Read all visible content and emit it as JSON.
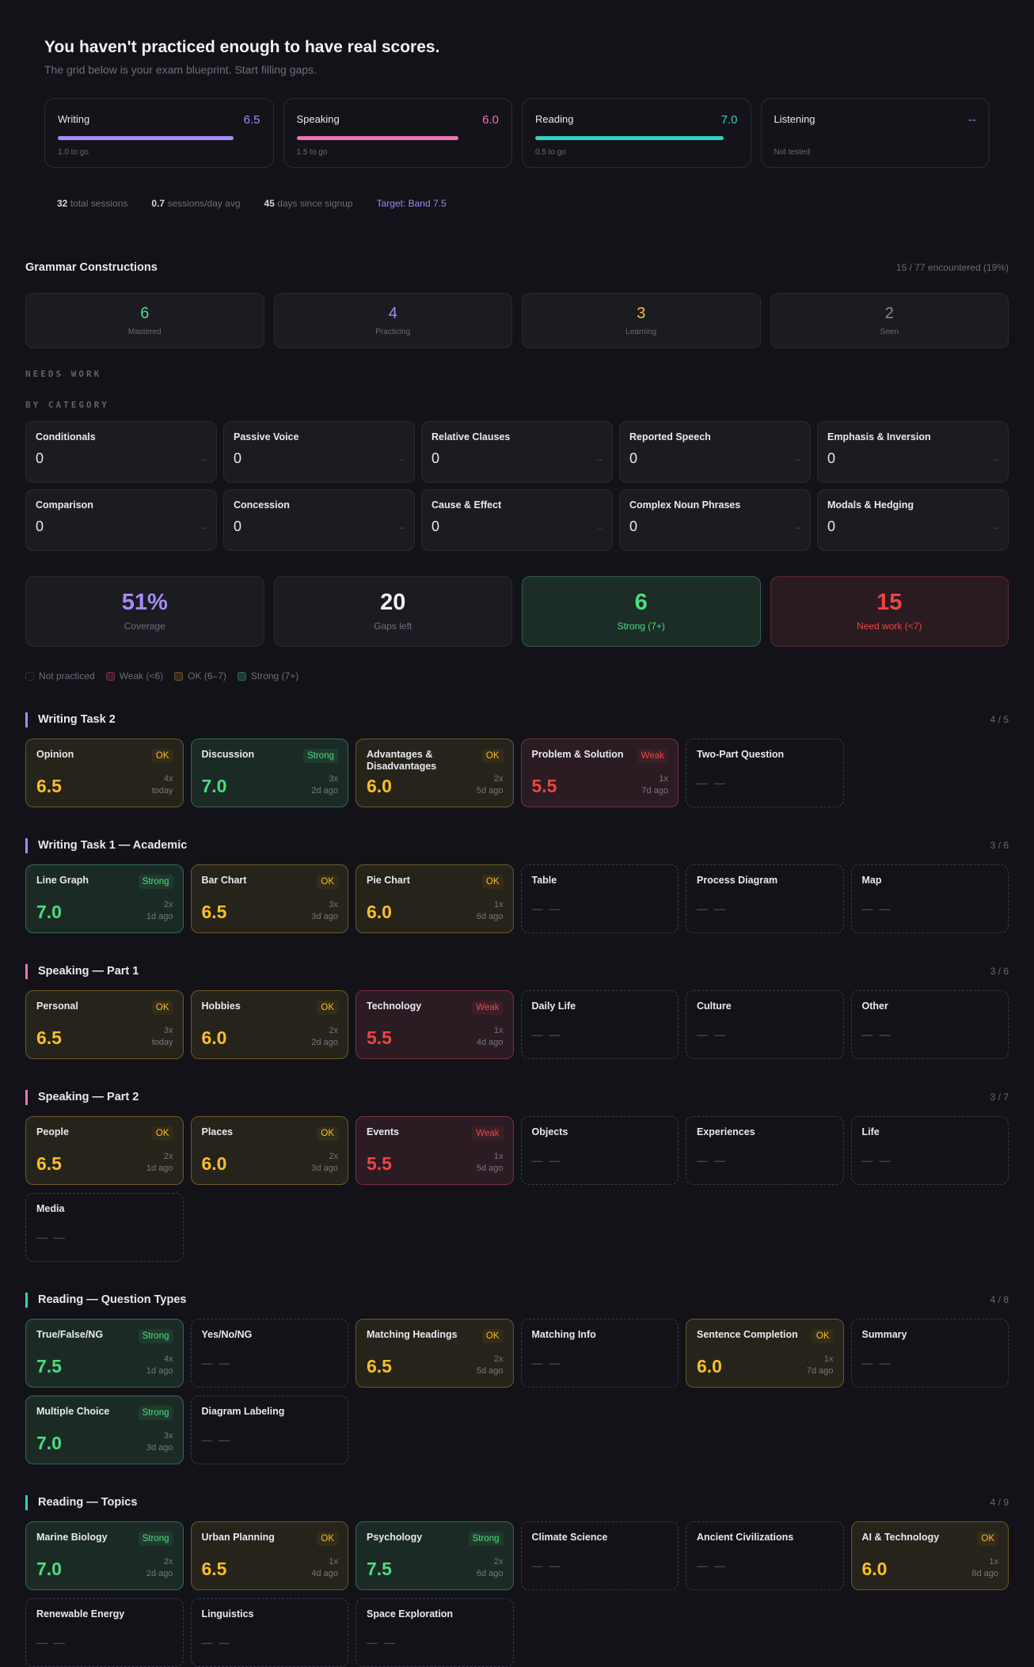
{
  "hero": {
    "title": "You haven't practiced enough to have real scores.",
    "subtitle": "The grid below is your exam blueprint. Start filling gaps."
  },
  "scores": [
    {
      "label": "Writing",
      "value": "6.5",
      "togo": "1.0 to go",
      "color": "#a78bfa",
      "fill": 0.87
    },
    {
      "label": "Speaking",
      "value": "6.0",
      "togo": "1.5 to go",
      "color": "#f472b6",
      "fill": 0.8
    },
    {
      "label": "Reading",
      "value": "7.0",
      "togo": "0.5 to go",
      "color": "#2dd4bf",
      "fill": 0.93
    },
    {
      "label": "Listening",
      "value": "--",
      "togo": "Not tested",
      "color": "#818cf8",
      "fill": 0
    }
  ],
  "stats": {
    "sessions": "32",
    "sessions_label": "total sessions",
    "avg": "0.7",
    "avg_label": "sessions/day avg",
    "days": "45",
    "days_label": "days since signup",
    "target": "Target: Band 7.5"
  },
  "grammar": {
    "title": "Grammar Constructions",
    "encountered": "15 / 77 encountered (19%)",
    "stats": [
      {
        "n": "6",
        "l": "Mastered",
        "color": "#4ade80"
      },
      {
        "n": "4",
        "l": "Practicing",
        "color": "#a78bfa"
      },
      {
        "n": "3",
        "l": "Learning",
        "color": "#fbbf24"
      },
      {
        "n": "2",
        "l": "Seen",
        "color": "#8a8a94"
      }
    ],
    "needs_work": "NEEDS WORK",
    "by_category": "BY CATEGORY",
    "categories": [
      {
        "t": "Conditionals",
        "c": "0",
        "d": "--"
      },
      {
        "t": "Passive Voice",
        "c": "0",
        "d": "--"
      },
      {
        "t": "Relative Clauses",
        "c": "0",
        "d": "--"
      },
      {
        "t": "Reported Speech",
        "c": "0",
        "d": "--"
      },
      {
        "t": "Emphasis & Inversion",
        "c": "0",
        "d": "--"
      },
      {
        "t": "Comparison",
        "c": "0",
        "d": "--"
      },
      {
        "t": "Concession",
        "c": "0",
        "d": "--"
      },
      {
        "t": "Cause & Effect",
        "c": "0",
        "d": "--"
      },
      {
        "t": "Complex Noun Phrases",
        "c": "0",
        "d": "--"
      },
      {
        "t": "Modals & Hedging",
        "c": "0",
        "d": "--"
      }
    ]
  },
  "summary": [
    {
      "n": "51%",
      "l": "Coverage",
      "cls": "",
      "color": "#a78bfa"
    },
    {
      "n": "20",
      "l": "Gaps left",
      "cls": "",
      "color": "#f2f2f5"
    },
    {
      "n": "6",
      "l": "Strong (7+)",
      "cls": "g"
    },
    {
      "n": "15",
      "l": "Need work (<7)",
      "cls": "r"
    }
  ],
  "legend": [
    {
      "l": "Not practiced",
      "k": "none"
    },
    {
      "l": "Weak (<6)",
      "k": "weak"
    },
    {
      "l": "OK (6–7)",
      "k": "ok"
    },
    {
      "l": "Strong (7+)",
      "k": "strong"
    }
  ],
  "sections": [
    {
      "title": "Writing Task 2",
      "count": "4 / 5",
      "accent": "#a78bfa",
      "items": [
        {
          "n": "Opinion",
          "s": "ok",
          "b": "OK",
          "sc": "6.5",
          "x": "4x",
          "w": "today"
        },
        {
          "n": "Discussion",
          "s": "strong",
          "b": "Strong",
          "sc": "7.0",
          "x": "3x",
          "w": "2d ago"
        },
        {
          "n": "Advantages & Disadvantages",
          "s": "ok",
          "b": "OK",
          "sc": "6.0",
          "x": "2x",
          "w": "5d ago"
        },
        {
          "n": "Problem & Solution",
          "s": "weak",
          "b": "Weak",
          "sc": "5.5",
          "x": "1x",
          "w": "7d ago"
        },
        {
          "n": "Two-Part Question",
          "s": "none",
          "sc": "— —"
        }
      ]
    },
    {
      "title": "Writing Task 1 — Academic",
      "count": "3 / 6",
      "accent": "#a78bfa",
      "items": [
        {
          "n": "Line Graph",
          "s": "strong",
          "b": "Strong",
          "sc": "7.0",
          "x": "2x",
          "w": "1d ago"
        },
        {
          "n": "Bar Chart",
          "s": "ok",
          "b": "OK",
          "sc": "6.5",
          "x": "3x",
          "w": "3d ago"
        },
        {
          "n": "Pie Chart",
          "s": "ok",
          "b": "OK",
          "sc": "6.0",
          "x": "1x",
          "w": "6d ago"
        },
        {
          "n": "Table",
          "s": "none",
          "sc": "— —"
        },
        {
          "n": "Process Diagram",
          "s": "none",
          "sc": "— —"
        },
        {
          "n": "Map",
          "s": "none",
          "sc": "— —"
        }
      ]
    },
    {
      "title": "Speaking — Part 1",
      "count": "3 / 6",
      "accent": "#f472b6",
      "items": [
        {
          "n": "Personal",
          "s": "ok",
          "b": "OK",
          "sc": "6.5",
          "x": "3x",
          "w": "today"
        },
        {
          "n": "Hobbies",
          "s": "ok",
          "b": "OK",
          "sc": "6.0",
          "x": "2x",
          "w": "2d ago"
        },
        {
          "n": "Technology",
          "s": "weak",
          "b": "Weak",
          "sc": "5.5",
          "x": "1x",
          "w": "4d ago"
        },
        {
          "n": "Daily Life",
          "s": "none",
          "sc": "— —"
        },
        {
          "n": "Culture",
          "s": "none",
          "sc": "— —"
        },
        {
          "n": "Other",
          "s": "none",
          "sc": "— —"
        }
      ]
    },
    {
      "title": "Speaking — Part 2",
      "count": "3 / 7",
      "accent": "#f472b6",
      "items": [
        {
          "n": "People",
          "s": "ok",
          "b": "OK",
          "sc": "6.5",
          "x": "2x",
          "w": "1d ago"
        },
        {
          "n": "Places",
          "s": "ok",
          "b": "OK",
          "sc": "6.0",
          "x": "2x",
          "w": "3d ago"
        },
        {
          "n": "Events",
          "s": "weak",
          "b": "Weak",
          "sc": "5.5",
          "x": "1x",
          "w": "5d ago"
        },
        {
          "n": "Objects",
          "s": "none",
          "sc": "— —"
        },
        {
          "n": "Experiences",
          "s": "none",
          "sc": "— —"
        },
        {
          "n": "Life",
          "s": "none",
          "sc": "— —"
        },
        {
          "n": "Media",
          "s": "none",
          "sc": "— —"
        }
      ]
    },
    {
      "title": "Reading — Question Types",
      "count": "4 / 8",
      "accent": "#2dd4bf",
      "items": [
        {
          "n": "True/False/NG",
          "s": "strong",
          "b": "Strong",
          "sc": "7.5",
          "x": "4x",
          "w": "1d ago"
        },
        {
          "n": "Yes/No/NG",
          "s": "none",
          "sc": "— —"
        },
        {
          "n": "Matching Headings",
          "s": "ok",
          "b": "OK",
          "sc": "6.5",
          "x": "2x",
          "w": "5d ago"
        },
        {
          "n": "Matching Info",
          "s": "none",
          "sc": "— —"
        },
        {
          "n": "Sentence Completion",
          "s": "ok",
          "b": "OK",
          "sc": "6.0",
          "x": "1x",
          "w": "7d ago"
        },
        {
          "n": "Summary",
          "s": "none",
          "sc": "— —"
        },
        {
          "n": "Multiple Choice",
          "s": "strong",
          "b": "Strong",
          "sc": "7.0",
          "x": "3x",
          "w": "3d ago"
        },
        {
          "n": "Diagram Labeling",
          "s": "none",
          "sc": "— —"
        }
      ]
    },
    {
      "title": "Reading — Topics",
      "count": "4 / 9",
      "accent": "#2dd4bf",
      "items": [
        {
          "n": "Marine Biology",
          "s": "strong",
          "b": "Strong",
          "sc": "7.0",
          "x": "2x",
          "w": "2d ago"
        },
        {
          "n": "Urban Planning",
          "s": "ok",
          "b": "OK",
          "sc": "6.5",
          "x": "1x",
          "w": "4d ago"
        },
        {
          "n": "Psychology",
          "s": "strong",
          "b": "Strong",
          "sc": "7.5",
          "x": "2x",
          "w": "6d ago"
        },
        {
          "n": "Climate Science",
          "s": "none",
          "sc": "— —"
        },
        {
          "n": "Ancient Civilizations",
          "s": "none",
          "sc": "— —"
        },
        {
          "n": "AI & Technology",
          "s": "ok",
          "b": "OK",
          "sc": "6.0",
          "x": "1x",
          "w": "8d ago"
        },
        {
          "n": "Renewable Energy",
          "s": "none",
          "sc": "— —"
        },
        {
          "n": "Linguistics",
          "s": "none",
          "sc": "— —"
        },
        {
          "n": "Space Exploration",
          "s": "none",
          "sc": "— —"
        }
      ]
    }
  ]
}
